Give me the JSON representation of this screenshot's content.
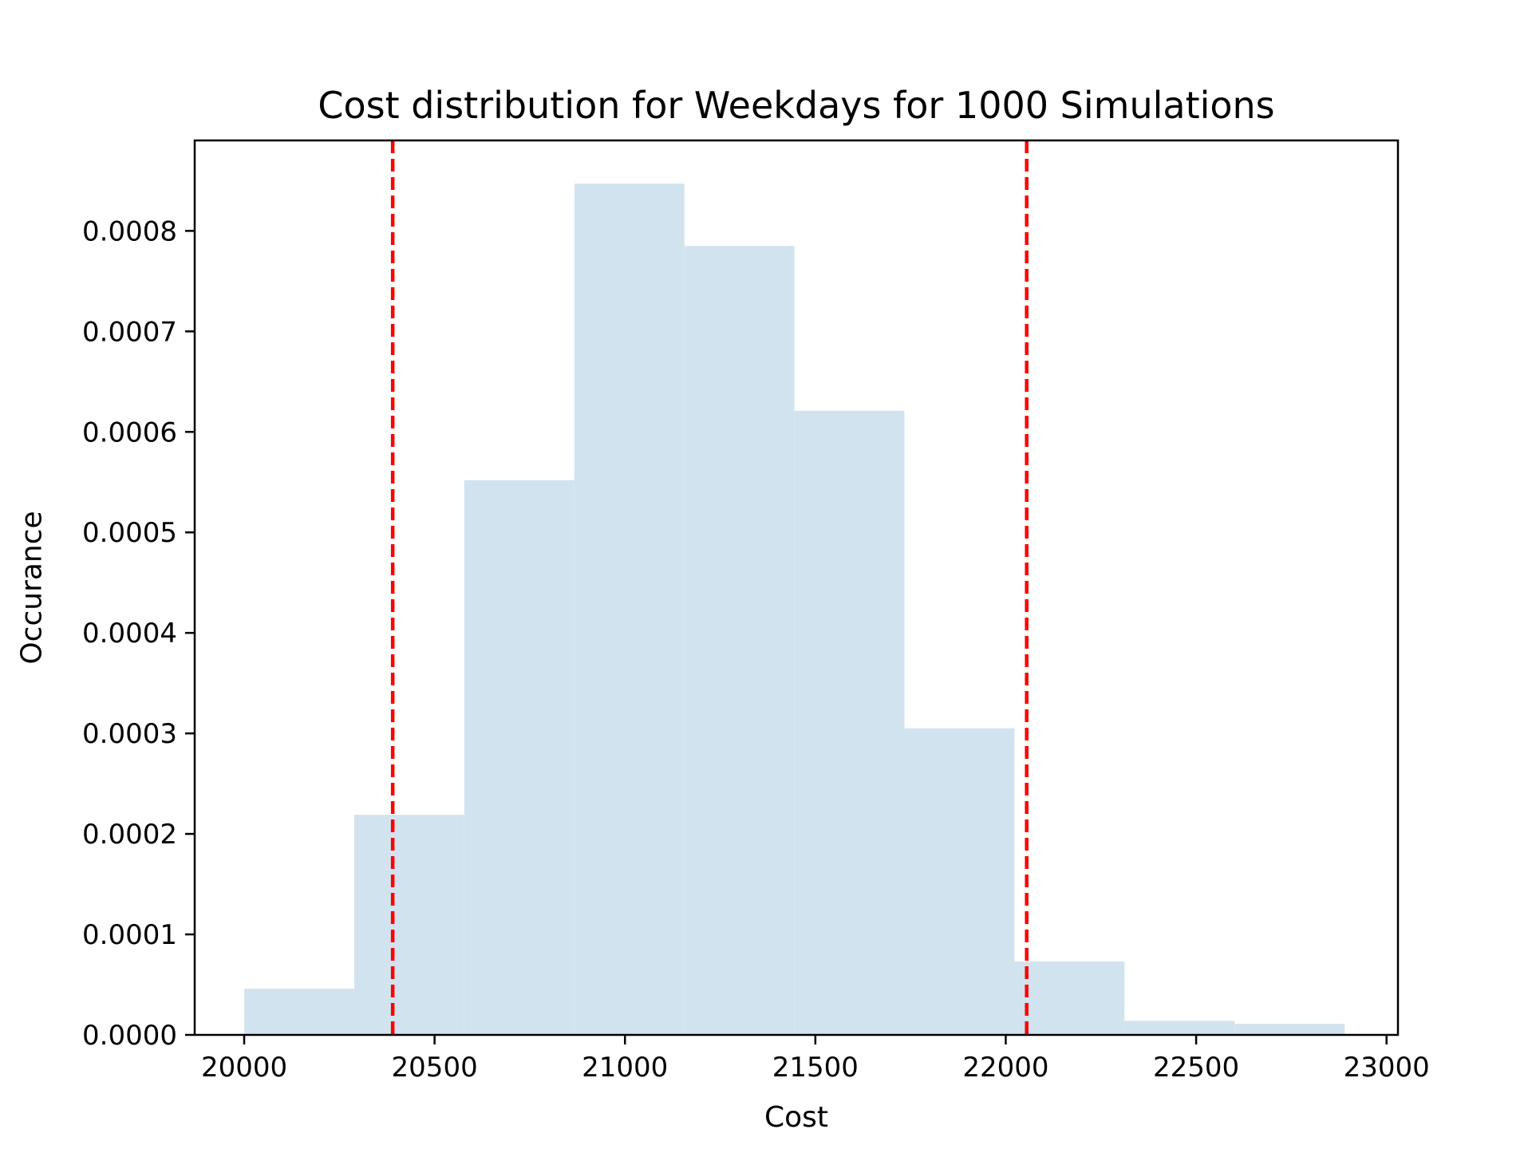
{
  "chart_data": {
    "type": "histogram",
    "title": "Cost distribution for Weekdays for 1000 Simulations",
    "xlabel": "Cost",
    "ylabel": "Occurance",
    "xlim": [
      19870,
      23030
    ],
    "ylim": [
      0,
      0.00089
    ],
    "xticks": [
      20000,
      20500,
      21000,
      21500,
      22000,
      22500,
      23000
    ],
    "xtick_labels": [
      "20000",
      "20500",
      "21000",
      "21500",
      "22000",
      "22500",
      "23000"
    ],
    "yticks": [
      0,
      0.0001,
      0.0002,
      0.0003,
      0.0004,
      0.0005,
      0.0006,
      0.0007,
      0.0008
    ],
    "ytick_labels": [
      "0.0000",
      "0.0001",
      "0.0002",
      "0.0003",
      "0.0004",
      "0.0005",
      "0.0006",
      "0.0007",
      "0.0008"
    ],
    "bins": [
      {
        "x0": 20000,
        "x1": 20289,
        "value": 4.6e-05
      },
      {
        "x0": 20289,
        "x1": 20578,
        "value": 0.000219
      },
      {
        "x0": 20578,
        "x1": 20867,
        "value": 0.000552
      },
      {
        "x0": 20867,
        "x1": 21156,
        "value": 0.000847
      },
      {
        "x0": 21156,
        "x1": 21445,
        "value": 0.000785
      },
      {
        "x0": 21445,
        "x1": 21734,
        "value": 0.000621
      },
      {
        "x0": 21734,
        "x1": 22023,
        "value": 0.000305
      },
      {
        "x0": 22023,
        "x1": 22312,
        "value": 7.3e-05
      },
      {
        "x0": 22312,
        "x1": 22601,
        "value": 1.4e-05
      },
      {
        "x0": 22601,
        "x1": 22890,
        "value": 1.1e-05
      }
    ],
    "vlines": [
      20390,
      22055
    ],
    "bar_color": "#d2e3f0",
    "vline_color": "#ff0000",
    "grid": false,
    "legend": false
  }
}
